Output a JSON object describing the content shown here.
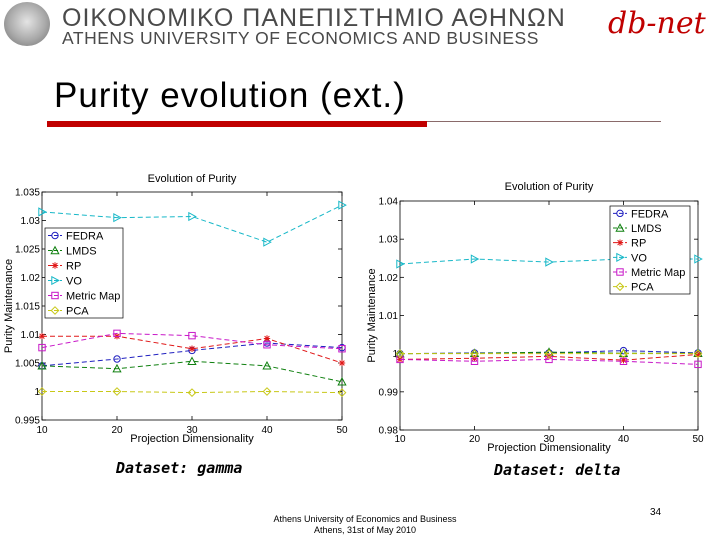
{
  "header": {
    "university_greek": "ΟΙΚΟΝΟΜΙΚΟ ΠΑΝΕΠΙΣΤΗΜΙΟ ΑΘΗΝΩΝ",
    "university_english": "ATHENS UNIVERSITY OF ECONOMICS AND BUSINESS",
    "lab_logo_prefix": "db",
    "lab_logo_suffix": "-net"
  },
  "slide": {
    "title": "Purity evolution (ext.)",
    "caption_left": "Dataset: gamma",
    "caption_right": "Dataset: delta",
    "footer_line1": "Athens University of Economics and Business",
    "footer_line2": "Athens, 31st of May 2010",
    "page_number": "34"
  },
  "colors": {
    "accent": "#c00000",
    "FEDRA": "#2020c0",
    "LMDS": "#108010",
    "RP": "#e01818",
    "VO": "#18b8c8",
    "Metric Map": "#c818c8",
    "PCA": "#c8c818"
  },
  "chart_data": [
    {
      "type": "line",
      "title": "Evolution of Purity",
      "xlabel": "Projection Dimensionality",
      "ylabel": "Purity Maintenance",
      "x": [
        10,
        20,
        30,
        40,
        50
      ],
      "xticks": [
        "10",
        "20",
        "30",
        "40",
        "50"
      ],
      "yticks": [
        "0.995",
        "1",
        "1.005",
        "1.01",
        "1.015",
        "1.02",
        "1.025",
        "1.03",
        "1.035"
      ],
      "ylim": [
        0.995,
        1.035
      ],
      "legend_position": "left-middle",
      "series": [
        {
          "name": "FEDRA",
          "marker": "circle",
          "values": [
            1.0045,
            1.0057,
            1.0072,
            1.0085,
            1.0077
          ]
        },
        {
          "name": "LMDS",
          "marker": "triangle-up",
          "values": [
            1.0045,
            1.004,
            1.0053,
            1.0045,
            1.0017
          ]
        },
        {
          "name": "RP",
          "marker": "star",
          "values": [
            1.0097,
            1.0097,
            1.0075,
            1.0093,
            1.005
          ]
        },
        {
          "name": "VO",
          "marker": "triangle-right",
          "values": [
            1.0315,
            1.0305,
            1.0307,
            1.0262,
            1.0327
          ]
        },
        {
          "name": "Metric Map",
          "marker": "square",
          "values": [
            1.0077,
            1.0102,
            1.0098,
            1.0082,
            1.0075
          ]
        },
        {
          "name": "PCA",
          "marker": "diamond",
          "values": [
            1.0,
            1.0,
            0.9998,
            1.0,
            0.9998
          ]
        }
      ]
    },
    {
      "type": "line",
      "title": "Evolution of Purity",
      "xlabel": "Projection Dimensionality",
      "ylabel": "Purity Maintenance",
      "x": [
        10,
        20,
        30,
        40,
        50
      ],
      "xticks": [
        "10",
        "20",
        "30",
        "40",
        "50"
      ],
      "yticks": [
        "0.98",
        "0.99",
        "1",
        "1.01",
        "1.02",
        "1.03",
        "1.04"
      ],
      "ylim": [
        0.98,
        1.04
      ],
      "legend_position": "top-right",
      "series": [
        {
          "name": "FEDRA",
          "marker": "circle",
          "values": [
            1.0,
            1.0002,
            1.0002,
            1.0008,
            1.0002
          ]
        },
        {
          "name": "LMDS",
          "marker": "triangle-up",
          "values": [
            1.0,
            1.0001,
            1.0004,
            1.0001,
            1.0001
          ]
        },
        {
          "name": "RP",
          "marker": "star",
          "values": [
            0.9985,
            0.9988,
            0.9993,
            0.9983,
            0.9998
          ]
        },
        {
          "name": "VO",
          "marker": "triangle-right",
          "values": [
            1.0235,
            1.0248,
            1.024,
            1.0248,
            1.0248
          ]
        },
        {
          "name": "Metric Map",
          "marker": "square",
          "values": [
            0.9985,
            0.998,
            0.9985,
            0.998,
            0.9972
          ]
        },
        {
          "name": "PCA",
          "marker": "diamond",
          "values": [
            1.0,
            1.0,
            1.0,
            1.0,
            1.0
          ]
        }
      ]
    }
  ]
}
